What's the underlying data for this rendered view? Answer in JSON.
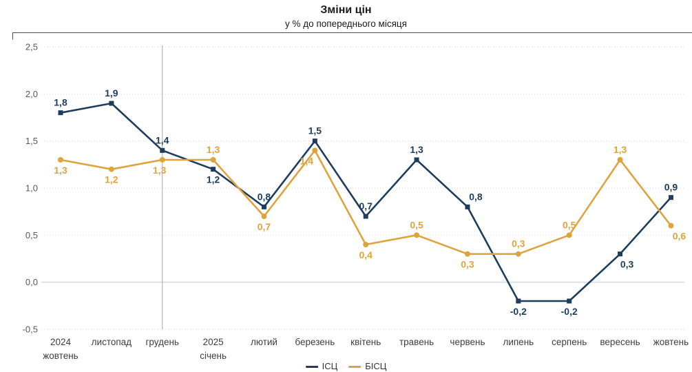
{
  "chart_data": {
    "type": "line",
    "title": "Зміни цін",
    "subtitle": "у % до попереднього місяця",
    "categories": [
      "2024|жовтень",
      "листопад",
      "грудень",
      "2025|січень",
      "лютий",
      "березень",
      "квітень",
      "травень",
      "червень",
      "липень",
      "серпень",
      "вересень",
      "жовтень"
    ],
    "series": [
      {
        "name": "ІСЦ",
        "color": "#1e3c5c",
        "marker": "square",
        "values": [
          1.8,
          1.9,
          1.4,
          1.2,
          0.8,
          1.5,
          0.7,
          1.3,
          0.8,
          -0.2,
          -0.2,
          0.3,
          0.9
        ],
        "labels": [
          "1,8",
          "1,9",
          "1,4",
          "1,2",
          "0,8",
          "1,5",
          "0,7",
          "1,3",
          "0,8",
          "-0,2",
          "-0,2",
          "0,3",
          "0,9"
        ],
        "label_pos": [
          "above",
          "above",
          "above",
          "below",
          "above",
          "above",
          "above",
          "above",
          "above",
          "below",
          "below",
          "below",
          "above"
        ],
        "label_dx": [
          0,
          0,
          0,
          0,
          0,
          0,
          0,
          0,
          12,
          0,
          0,
          10,
          0
        ]
      },
      {
        "name": "БІСЦ",
        "color": "#dfa33c",
        "marker": "circle",
        "values": [
          1.3,
          1.2,
          1.3,
          1.3,
          0.7,
          1.4,
          0.4,
          0.5,
          0.3,
          0.3,
          0.5,
          1.3,
          0.6
        ],
        "labels": [
          "1,3",
          "1,2",
          "1,3",
          "1,3",
          "0,7",
          "1,4",
          "0,4",
          "0,5",
          "0,3",
          "0,3",
          "0,5",
          "1,3",
          "0,6"
        ],
        "label_pos": [
          "below",
          "below",
          "below",
          "above",
          "below",
          "below",
          "below",
          "above",
          "below",
          "above",
          "above",
          "above",
          "below"
        ],
        "label_dx": [
          0,
          0,
          -4,
          0,
          0,
          -12,
          0,
          0,
          0,
          0,
          0,
          0,
          12
        ]
      }
    ],
    "yticks": [
      {
        "label": "2,5",
        "value": 2.5
      },
      {
        "label": "2,0",
        "value": 2.0
      },
      {
        "label": "1,5",
        "value": 1.5
      },
      {
        "label": "1,0",
        "value": 1.0
      },
      {
        "label": "0,5",
        "value": 0.5
      },
      {
        "label": "0,0",
        "value": 0.0
      },
      {
        "label": "-0,5",
        "value": -0.5
      }
    ],
    "ylim": [
      -0.5,
      2.5
    ],
    "grid": "dotted-horizontal",
    "zero_line": true,
    "separator_category_index": 2,
    "legend_position": "bottom-center-clipped",
    "legend": [
      {
        "label": "ІСЦ",
        "color": "#1e3c5c"
      },
      {
        "label": "БІСЦ",
        "color": "#dfa33c"
      }
    ],
    "colors": {
      "grid": "#d9d9d9",
      "zero_line": "#d9e1ea",
      "separator": "#a6a6a6",
      "top_border": "#4a4a4a",
      "y_tick_text": "#595959",
      "x_tick_text": "#3d3d3d"
    }
  }
}
